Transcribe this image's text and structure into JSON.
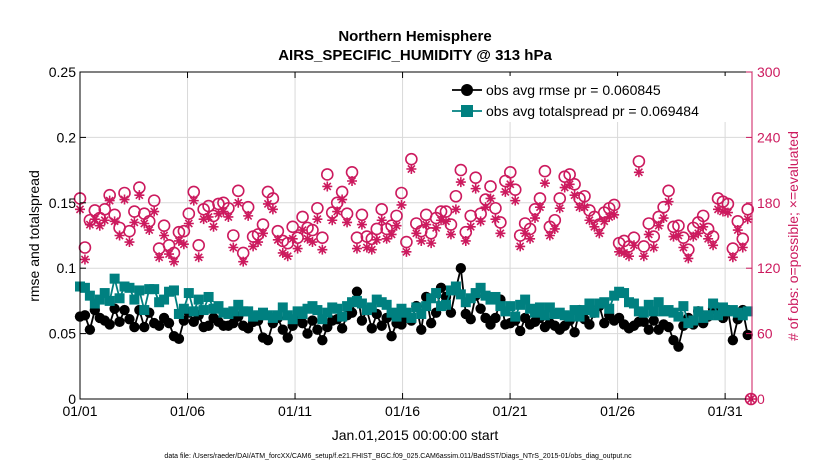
{
  "chart_data": {
    "type": "line",
    "title": [
      "Northern Hemisphere",
      "AIRS_SPECIFIC_HUMIDITY @ 313 hPa"
    ],
    "xlabel": "Jan.01,2015 00:00:00 start",
    "ylabel": "rmse and totalspread",
    "y2label": "# of obs: o=possible; ×=evaluated",
    "x_tick_labels": [
      "01/01",
      "01/06",
      "01/11",
      "01/16",
      "01/21",
      "01/26",
      "01/31"
    ],
    "x_tick_values": [
      1,
      6,
      11,
      16,
      21,
      26,
      31
    ],
    "xlim": [
      1,
      32.25
    ],
    "ylim": [
      0,
      0.25
    ],
    "y_ticks": [
      0,
      0.05,
      0.1,
      0.15,
      0.2,
      0.25
    ],
    "y_tick_labels": [
      "0",
      "0.05",
      "0.1",
      "0.15",
      "0.2",
      "0.25"
    ],
    "y2lim": [
      0,
      300
    ],
    "y2_ticks": [
      0,
      60,
      120,
      180,
      240,
      300
    ],
    "y2_tick_labels": [
      "0",
      "60",
      "120",
      "180",
      "240",
      "300"
    ],
    "grid": true,
    "legend_position": "top-right",
    "colors": {
      "rmse": "#000000",
      "spread": "#008080",
      "obs": "#cc1a5e"
    },
    "series": [
      {
        "name": "obs avg rmse pr = 0.060845",
        "marker": "circle",
        "values": [
          0.063,
          0.064,
          0.053,
          0.068,
          0.062,
          0.06,
          0.057,
          0.069,
          0.059,
          0.068,
          0.061,
          0.055,
          0.068,
          0.055,
          0.066,
          0.058,
          0.056,
          0.062,
          0.058,
          0.048,
          0.046,
          0.06,
          0.066,
          0.059,
          0.064,
          0.055,
          0.056,
          0.062,
          0.059,
          0.056,
          0.056,
          0.058,
          0.063,
          0.056,
          0.054,
          0.059,
          0.06,
          0.047,
          0.045,
          0.058,
          0.062,
          0.053,
          0.047,
          0.056,
          0.061,
          0.058,
          0.05,
          0.06,
          0.053,
          0.045,
          0.055,
          0.06,
          0.061,
          0.054,
          0.064,
          0.066,
          0.082,
          0.06,
          0.068,
          0.054,
          0.065,
          0.056,
          0.062,
          0.048,
          0.058,
          0.057,
          0.062,
          0.06,
          0.071,
          0.053,
          0.078,
          0.058,
          0.066,
          0.085,
          0.078,
          0.066,
          0.084,
          0.1,
          0.065,
          0.061,
          0.079,
          0.069,
          0.062,
          0.057,
          0.062,
          0.076,
          0.057,
          0.058,
          0.06,
          0.052,
          0.062,
          0.057,
          0.059,
          0.062,
          0.055,
          0.058,
          0.056,
          0.053,
          0.056,
          0.06,
          0.051,
          0.068,
          0.061,
          0.057,
          0.066,
          0.071,
          0.058,
          0.064,
          0.06,
          0.062,
          0.057,
          0.054,
          0.056,
          0.059,
          0.059,
          0.053,
          0.06,
          0.053,
          0.057,
          0.055,
          0.045,
          0.04,
          0.056,
          0.062,
          0.057,
          0.067,
          0.058,
          0.063,
          0.069,
          0.07,
          0.062,
          0.068,
          0.045,
          0.061,
          0.068,
          0.049
        ]
      },
      {
        "name": "obs avg totalspread pr = 0.069484",
        "marker": "square",
        "values": [
          0.086,
          0.085,
          0.079,
          0.073,
          0.076,
          0.081,
          0.075,
          0.092,
          0.077,
          0.086,
          0.085,
          0.076,
          0.083,
          0.068,
          0.084,
          0.084,
          0.074,
          0.076,
          0.082,
          0.083,
          0.065,
          0.069,
          0.081,
          0.067,
          0.076,
          0.068,
          0.078,
          0.069,
          0.071,
          0.066,
          0.065,
          0.067,
          0.072,
          0.067,
          0.067,
          0.063,
          0.064,
          0.066,
          0.064,
          0.062,
          0.064,
          0.07,
          0.064,
          0.061,
          0.067,
          0.065,
          0.069,
          0.071,
          0.068,
          0.061,
          0.066,
          0.07,
          0.069,
          0.063,
          0.071,
          0.074,
          0.075,
          0.073,
          0.068,
          0.07,
          0.076,
          0.074,
          0.072,
          0.066,
          0.063,
          0.069,
          0.066,
          0.062,
          0.07,
          0.065,
          0.071,
          0.077,
          0.081,
          0.071,
          0.072,
          0.083,
          0.086,
          0.08,
          0.074,
          0.077,
          0.081,
          0.085,
          0.079,
          0.076,
          0.078,
          0.071,
          0.067,
          0.071,
          0.063,
          0.072,
          0.076,
          0.069,
          0.066,
          0.07,
          0.064,
          0.07,
          0.065,
          0.066,
          0.064,
          0.063,
          0.068,
          0.063,
          0.068,
          0.073,
          0.066,
          0.073,
          0.074,
          0.069,
          0.079,
          0.082,
          0.081,
          0.074,
          0.073,
          0.067,
          0.066,
          0.072,
          0.067,
          0.074,
          0.067,
          0.068,
          0.066,
          0.063,
          0.071,
          0.058,
          0.06,
          0.067,
          0.062,
          0.064,
          0.073,
          0.064,
          0.07,
          0.067,
          0.068,
          0.066,
          0.064,
          0.067
        ]
      },
      {
        "name": "obs possible",
        "axis": "right",
        "marker": "circle-open",
        "values": [
          184,
          139,
          164,
          173,
          166,
          174,
          187,
          169,
          157,
          189,
          154,
          172,
          194,
          170,
          163,
          182,
          138,
          159,
          141,
          134,
          153,
          154,
          170,
          190,
          141,
          174,
          177,
          168,
          179,
          180,
          175,
          150,
          191,
          134,
          176,
          149,
          151,
          160,
          190,
          184,
          154,
          145,
          143,
          158,
          148,
          167,
          157,
          155,
          175,
          148,
          206,
          171,
          180,
          190,
          170,
          208,
          148,
          169,
          149,
          147,
          156,
          174,
          156,
          159,
          168,
          189,
          144,
          220,
          161,
          154,
          169,
          152,
          166,
          172,
          172,
          160,
          186,
          210,
          153,
          168,
          203,
          170,
          183,
          195,
          175,
          162,
          200,
          208,
          192,
          150,
          161,
          156,
          174,
          184,
          209,
          158,
          164,
          184,
          204,
          206,
          197,
          184,
          186,
          173,
          167,
          160,
          171,
          175,
          178,
          143,
          145,
          140,
          148,
          218,
          140,
          161,
          149,
          167,
          176,
          191,
          158,
          159,
          148,
          137,
          157,
          162,
          168,
          156,
          149,
          184,
          181,
          179,
          138,
          163,
          147,
          174
        ]
      },
      {
        "name": "obs evaluated",
        "axis": "right",
        "marker": "asterisk",
        "values": [
          174,
          128,
          160,
          165,
          159,
          164,
          182,
          163,
          150,
          183,
          144,
          162,
          187,
          161,
          155,
          172,
          130,
          150,
          133,
          126,
          145,
          142,
          161,
          182,
          130,
          165,
          167,
          158,
          170,
          172,
          167,
          139,
          180,
          126,
          168,
          140,
          144,
          152,
          179,
          174,
          146,
          134,
          131,
          147,
          138,
          155,
          147,
          144,
          165,
          137,
          195,
          164,
          172,
          183,
          162,
          200,
          138,
          160,
          139,
          137,
          146,
          164,
          147,
          151,
          159,
          178,
          135,
          211,
          152,
          145,
          160,
          143,
          157,
          164,
          163,
          151,
          174,
          199,
          145,
          158,
          193,
          163,
          176,
          184,
          165,
          152,
          190,
          197,
          182,
          140,
          152,
          147,
          166,
          176,
          198,
          150,
          156,
          175,
          194,
          197,
          187,
          176,
          176,
          164,
          158,
          152,
          163,
          167,
          169,
          135,
          134,
          131,
          141,
          208,
          131,
          151,
          139,
          159,
          166,
          181,
          149,
          150,
          139,
          129,
          149,
          152,
          158,
          147,
          141,
          174,
          172,
          171,
          130,
          155,
          139,
          165
        ]
      }
    ]
  },
  "footer": {
    "text": "data file: /Users/raeder/DAI/ATM_forcXX/CAM6_setup/f.e21.FHIST_BGC.f09_025.CAM6assim.011/BadSST/Diags_NTrS_2015-01/obs_diag_output.nc"
  }
}
